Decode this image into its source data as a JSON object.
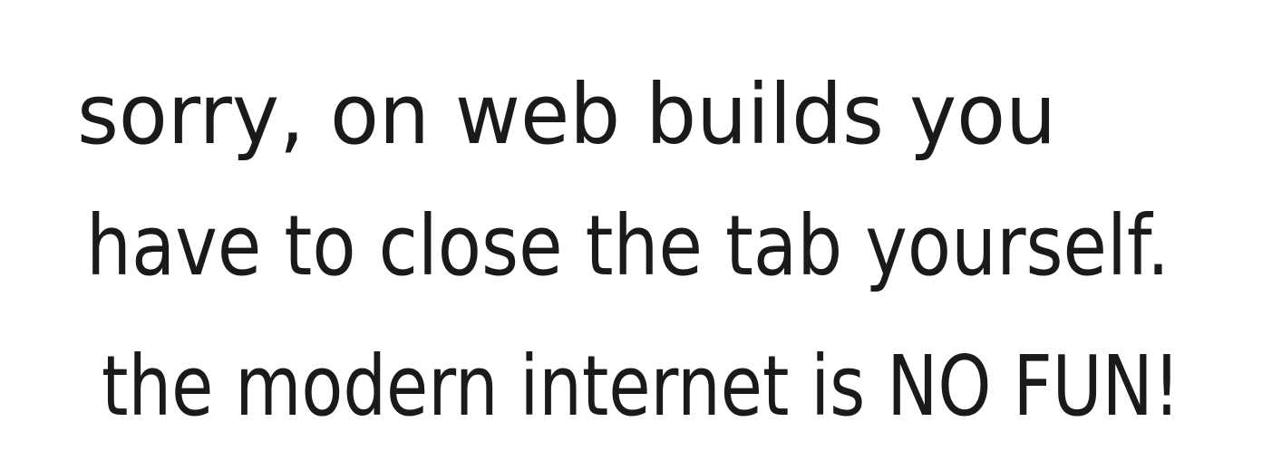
{
  "note": {
    "lines": [
      "sorry, on web builds you",
      "have to close the tab yourself.",
      "the modern internet is NO FUN!"
    ]
  }
}
